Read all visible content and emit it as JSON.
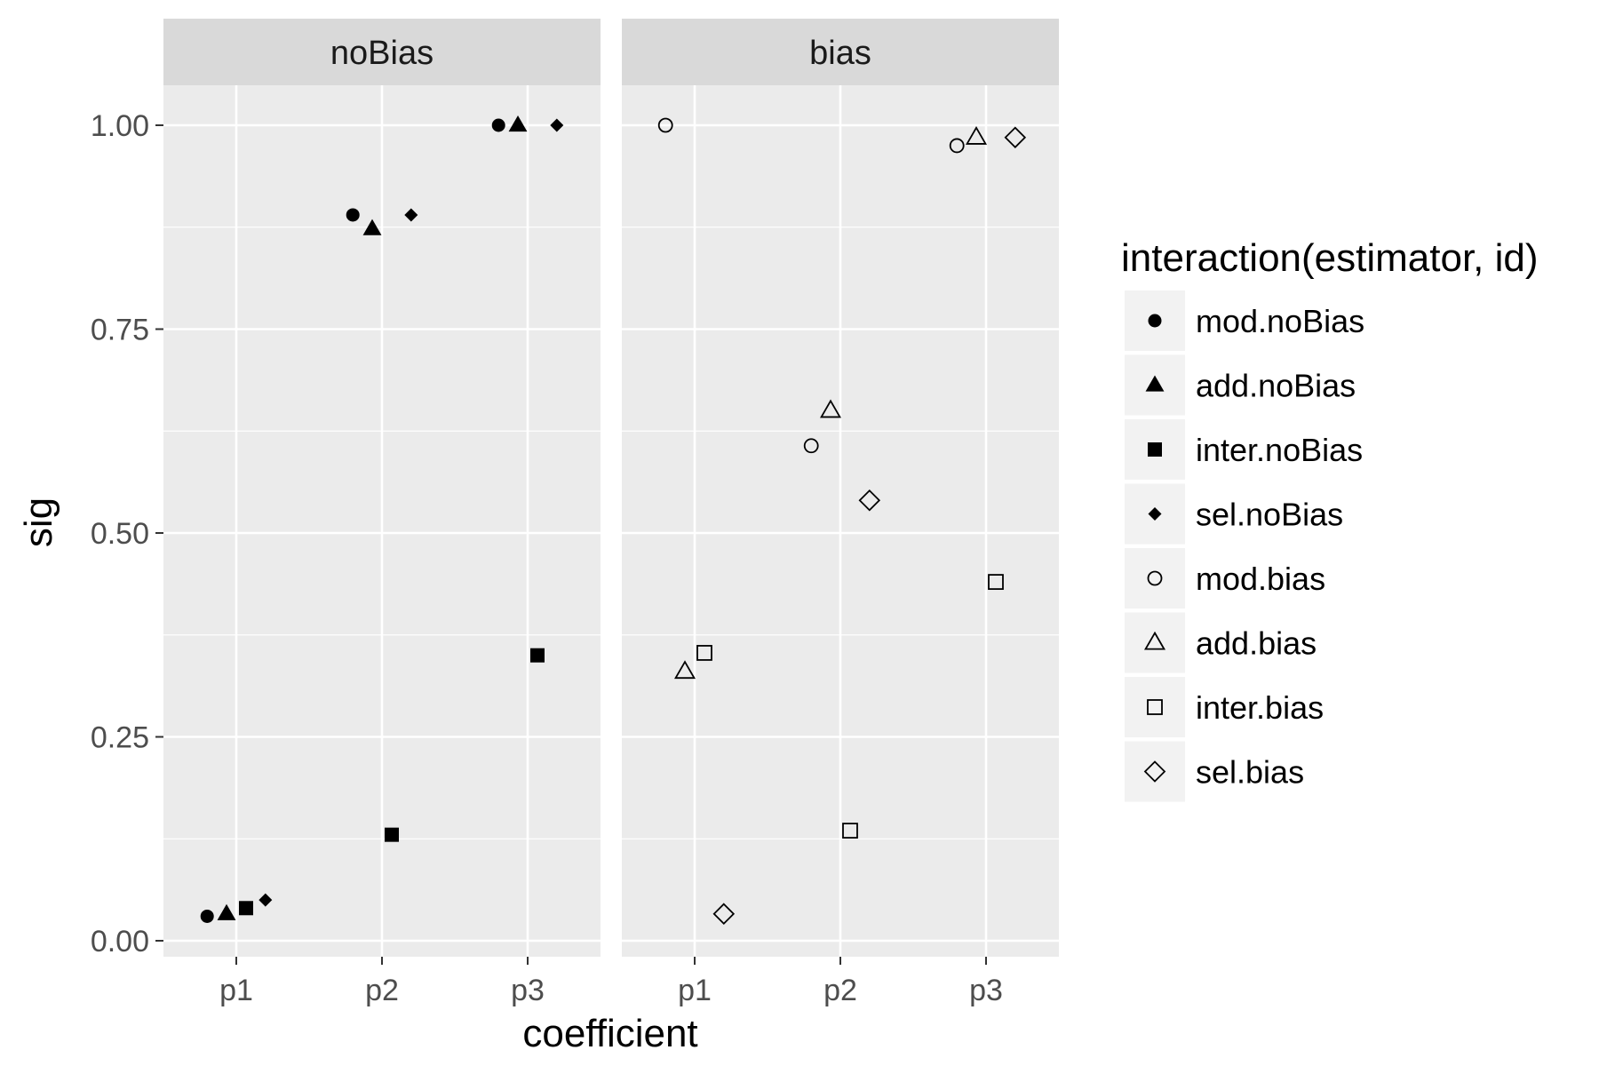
{
  "chart_data": {
    "type": "scatter",
    "facet_labels": [
      "noBias",
      "bias"
    ],
    "xlabel": "coefficient",
    "ylabel": "sig",
    "x_categories": [
      "p1",
      "p2",
      "p3"
    ],
    "y_ticks": [
      "0.00",
      "0.25",
      "0.50",
      "0.75",
      "1.00"
    ],
    "ylim": [
      -0.02,
      1.13
    ],
    "legend_title": "interaction(estimator, id)",
    "legend_position": "right",
    "series": [
      {
        "name": "mod.noBias",
        "facet": "noBias",
        "shape": "circle-filled",
        "points": [
          {
            "x": "p1",
            "y": 0.03
          },
          {
            "x": "p2",
            "y": 0.89
          },
          {
            "x": "p3",
            "y": 1.0
          }
        ]
      },
      {
        "name": "add.noBias",
        "facet": "noBias",
        "shape": "triangle-filled",
        "points": [
          {
            "x": "p1",
            "y": 0.033
          },
          {
            "x": "p2",
            "y": 0.873
          },
          {
            "x": "p3",
            "y": 1.0
          }
        ]
      },
      {
        "name": "inter.noBias",
        "facet": "noBias",
        "shape": "square-filled",
        "points": [
          {
            "x": "p1",
            "y": 0.04
          },
          {
            "x": "p2",
            "y": 0.13
          },
          {
            "x": "p3",
            "y": 0.35
          }
        ]
      },
      {
        "name": "sel.noBias",
        "facet": "noBias",
        "shape": "diamond-filled",
        "points": [
          {
            "x": "p1",
            "y": 0.05
          },
          {
            "x": "p2",
            "y": 0.89
          },
          {
            "x": "p3",
            "y": 1.0
          }
        ]
      },
      {
        "name": "mod.bias",
        "facet": "bias",
        "shape": "circle-open",
        "points": [
          {
            "x": "p1",
            "y": 1.0
          },
          {
            "x": "p2",
            "y": 0.607
          },
          {
            "x": "p3",
            "y": 0.975
          }
        ]
      },
      {
        "name": "add.bias",
        "facet": "bias",
        "shape": "triangle-open",
        "points": [
          {
            "x": "p1",
            "y": 0.33
          },
          {
            "x": "p2",
            "y": 0.65
          },
          {
            "x": "p3",
            "y": 0.985
          }
        ]
      },
      {
        "name": "inter.bias",
        "facet": "bias",
        "shape": "square-open",
        "points": [
          {
            "x": "p1",
            "y": 0.353
          },
          {
            "x": "p2",
            "y": 0.135
          },
          {
            "x": "p3",
            "y": 0.44
          }
        ]
      },
      {
        "name": "sel.bias",
        "facet": "bias",
        "shape": "diamond-open",
        "points": [
          {
            "x": "p1",
            "y": 0.033
          },
          {
            "x": "p2",
            "y": 0.54
          },
          {
            "x": "p3",
            "y": 0.985
          }
        ]
      }
    ]
  },
  "colors": {
    "panel_background": "#ebebeb",
    "strip_background": "#d9d9d9",
    "grid": "#ffffff",
    "marks": "#000000",
    "legend_key_background": "#f2f2f2"
  }
}
